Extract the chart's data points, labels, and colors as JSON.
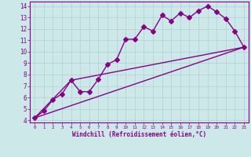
{
  "xlabel": "Windchill (Refroidissement éolien,°C)",
  "bg_color": "#cde8e8",
  "grid_color": "#b0d0d0",
  "line_color": "#880088",
  "xlim": [
    -0.5,
    23.5
  ],
  "ylim": [
    3.8,
    14.4
  ],
  "xticks": [
    0,
    1,
    2,
    3,
    4,
    5,
    6,
    7,
    8,
    9,
    10,
    11,
    12,
    13,
    14,
    15,
    16,
    17,
    18,
    19,
    20,
    21,
    22,
    23
  ],
  "yticks": [
    4,
    5,
    6,
    7,
    8,
    9,
    10,
    11,
    12,
    13,
    14
  ],
  "line1_x": [
    0,
    1,
    2,
    3,
    4,
    5,
    6,
    7,
    8,
    9,
    10,
    11,
    12,
    13,
    14,
    15,
    16,
    17,
    18,
    19,
    20,
    21,
    22,
    23
  ],
  "line1_y": [
    4.2,
    4.8,
    5.8,
    6.3,
    7.5,
    6.5,
    6.5,
    7.6,
    8.9,
    9.3,
    11.1,
    11.1,
    12.2,
    11.8,
    13.2,
    12.7,
    13.4,
    13.0,
    13.6,
    14.0,
    13.5,
    12.9,
    11.8,
    10.4
  ],
  "line2_x": [
    0,
    23
  ],
  "line2_y": [
    4.2,
    10.4
  ],
  "line3_x": [
    0,
    4,
    23
  ],
  "line3_y": [
    4.2,
    7.5,
    10.4
  ],
  "markersize": 3,
  "linewidth": 1.0
}
